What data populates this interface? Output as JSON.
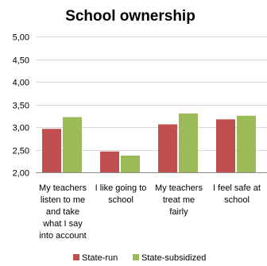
{
  "chart_data": {
    "type": "bar",
    "title": "School ownership",
    "categories": [
      [
        "My teachers",
        "listen to me",
        "and take",
        "what I say",
        "into account"
      ],
      [
        "I like going to",
        "school"
      ],
      [
        "My teachers",
        "treat me",
        "fairly"
      ],
      [
        "I feel safe at",
        "school"
      ]
    ],
    "series": [
      {
        "name": "State-run",
        "color": "#C0504D",
        "values": [
          2.96,
          2.46,
          3.06,
          3.17
        ]
      },
      {
        "name": "State-subsidized",
        "color": "#9BBB59",
        "values": [
          3.22,
          2.37,
          3.3,
          3.25
        ]
      }
    ],
    "ylim": [
      2.0,
      5.0
    ],
    "yticks": [
      "2,00",
      "2,50",
      "3,00",
      "3,50",
      "4,00",
      "4,50",
      "5,00"
    ],
    "ytick_values": [
      2.0,
      2.5,
      3.0,
      3.5,
      4.0,
      4.5,
      5.0
    ],
    "grid": true,
    "legend_position": "bottom"
  }
}
